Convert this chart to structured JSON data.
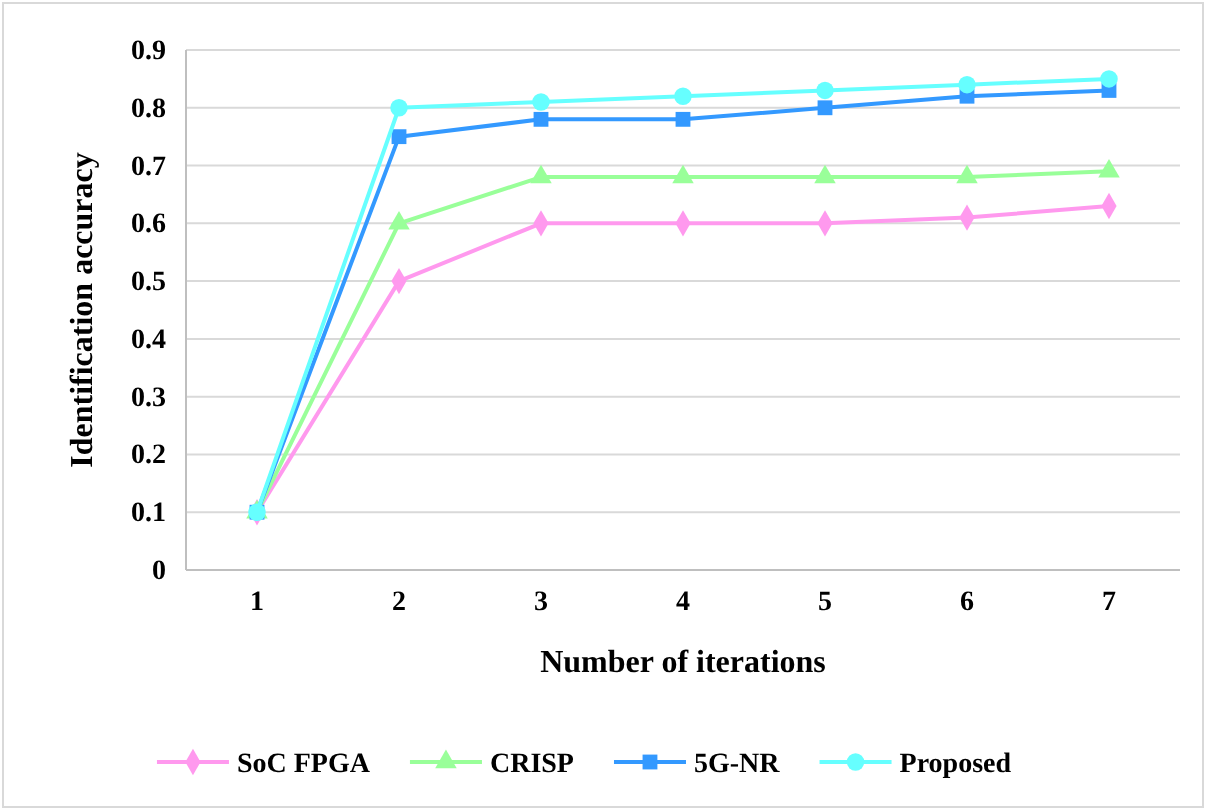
{
  "chart_data": {
    "type": "line",
    "xlabel": "Number of iterations",
    "ylabel": "Identification accuracy",
    "categories": [
      "1",
      "2",
      "3",
      "4",
      "5",
      "6",
      "7"
    ],
    "ylim": [
      0,
      0.9
    ],
    "yticks": [
      0,
      0.1,
      0.2,
      0.3,
      0.4,
      0.5,
      0.6,
      0.7,
      0.8,
      0.9
    ],
    "grid": "y",
    "legend": "bottom",
    "series": [
      {
        "name": "SoC FPGA",
        "color": "#ff99ee",
        "marker": "diamond",
        "values": [
          0.1,
          0.5,
          0.6,
          0.6,
          0.6,
          0.61,
          0.63
        ]
      },
      {
        "name": "CRISP",
        "color": "#99ff99",
        "marker": "triangle",
        "values": [
          0.1,
          0.6,
          0.68,
          0.68,
          0.68,
          0.68,
          0.69
        ]
      },
      {
        "name": "5G-NR",
        "color": "#3399ff",
        "marker": "square",
        "values": [
          0.1,
          0.75,
          0.78,
          0.78,
          0.8,
          0.82,
          0.83
        ]
      },
      {
        "name": "Proposed",
        "color": "#66ffff",
        "marker": "circle",
        "values": [
          0.1,
          0.8,
          0.81,
          0.82,
          0.83,
          0.84,
          0.85
        ]
      }
    ]
  }
}
